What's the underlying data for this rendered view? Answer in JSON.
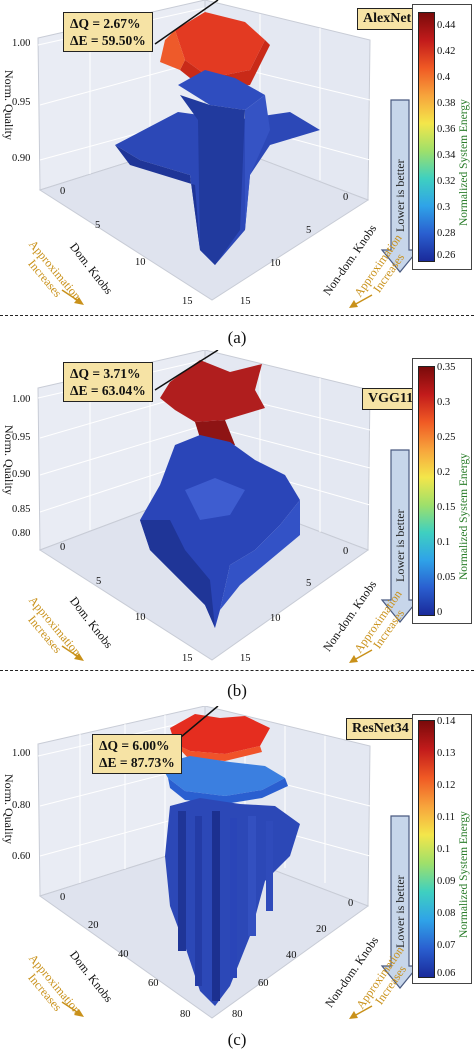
{
  "chart_data": [
    {
      "type": "surface3d",
      "network": "AlexNet",
      "annotation": {
        "dq": "ΔQ = 2.67%",
        "de": "ΔE = 59.50%"
      },
      "z_label": "Norm. Quality",
      "z_ticks": [
        "1.00",
        "0.95",
        "0.90"
      ],
      "x_label": "Dom. Knobs",
      "x_ticks": [
        "0",
        "5",
        "10",
        "15"
      ],
      "y_label": "Non-dom. Knobs",
      "y_ticks": [
        "0",
        "5",
        "10",
        "15"
      ],
      "colorbar_label": "Normalized System Energy",
      "colorbar_ticks": [
        "0.44",
        "0.42",
        "0.4",
        "0.38",
        "0.36",
        "0.34",
        "0.32",
        "0.3",
        "0.28",
        "0.26"
      ],
      "colorbar_range": [
        0.255,
        0.445
      ],
      "lower_is_better": "Lower is better",
      "approx_label": [
        "Approximation",
        "Increases"
      ],
      "caption": "(a)"
    },
    {
      "type": "surface3d",
      "network": "VGG11",
      "annotation": {
        "dq": "ΔQ = 3.71%",
        "de": "ΔE = 63.04%"
      },
      "z_label": "Norm. Quality",
      "z_ticks": [
        "1.00",
        "0.95",
        "0.90",
        "0.85",
        "0.80"
      ],
      "x_label": "Dom. Knobs",
      "x_ticks": [
        "0",
        "5",
        "10",
        "15"
      ],
      "y_label": "Non-dom. Knobs",
      "y_ticks": [
        "0",
        "5",
        "10",
        "15"
      ],
      "colorbar_label": "Normalized System Energy",
      "colorbar_ticks": [
        "0.35",
        "0.3",
        "0.25",
        "0.2",
        "0.15",
        "0.1",
        "0.05",
        "0"
      ],
      "colorbar_range": [
        0,
        0.35
      ],
      "lower_is_better": "Lower is better",
      "approx_label": [
        "Approximation",
        "Increases"
      ],
      "caption": "(b)"
    },
    {
      "type": "surface3d",
      "network": "ResNet34",
      "annotation": {
        "dq": "ΔQ = 6.00%",
        "de": "ΔE = 87.73%"
      },
      "z_label": "Norm. Quality",
      "z_ticks": [
        "1.00",
        "0.80",
        "0.60"
      ],
      "x_label": "Dom. Knobs",
      "x_ticks": [
        "0",
        "20",
        "40",
        "60",
        "80"
      ],
      "y_label": "Non-dom. Knobs",
      "y_ticks": [
        "0",
        "20",
        "40",
        "60",
        "80"
      ],
      "colorbar_label": "Normalized System Energy",
      "colorbar_ticks": [
        "0.14",
        "0.13",
        "0.12",
        "0.11",
        "0.1",
        "0.09",
        "0.08",
        "0.07",
        "0.06"
      ],
      "colorbar_range": [
        0.06,
        0.14
      ],
      "lower_is_better": "Lower is better",
      "approx_label": [
        "Approximation",
        "Increases"
      ],
      "caption": "(c)"
    }
  ],
  "colors": {
    "annotation_bg": "#f6e3a5",
    "colorbar_label": "#2a7d2a",
    "approx_text": "#c9911a",
    "arrow_fill": "#c7d6ea",
    "surface_high": "#e52d1f",
    "surface_low": "#2a45b8"
  }
}
